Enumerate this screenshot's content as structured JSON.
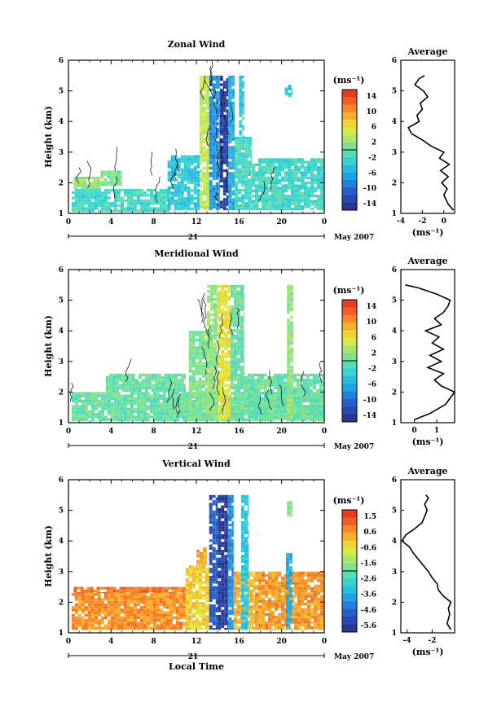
{
  "figure": {
    "xlabel": "Local Time",
    "day_label": "21",
    "month_label": "May 2007",
    "unit_label": "(ms⁻¹)"
  },
  "chart_data": [
    {
      "type": "heatmap",
      "title": "Zonal Wind",
      "ylabel": "Height (km)",
      "xlim": [
        0,
        24
      ],
      "ylim": [
        1,
        6
      ],
      "xticks": [
        "0",
        "4",
        "8",
        "12",
        "16",
        "20",
        "0"
      ],
      "yticks": [
        "1",
        "2",
        "3",
        "4",
        "5",
        "6"
      ],
      "colorbar": {
        "ticks": [
          "14",
          "10",
          "6",
          "2",
          "-2",
          "-6",
          "-10",
          "-14"
        ],
        "range": [
          -16,
          16
        ]
      },
      "regions": [
        {
          "x": [
            0.3,
            9.5
          ],
          "y": [
            1.05,
            1.8
          ],
          "v": -2
        },
        {
          "x": [
            0.5,
            3.0
          ],
          "y": [
            1.8,
            2.2
          ],
          "v": 2
        },
        {
          "x": [
            3.0,
            5.0
          ],
          "y": [
            1.9,
            2.4
          ],
          "v": 1
        },
        {
          "x": [
            9.3,
            12.3
          ],
          "y": [
            1.1,
            2.9
          ],
          "v": -4
        },
        {
          "x": [
            12.3,
            13.2
          ],
          "y": [
            1.1,
            5.5
          ],
          "v": 4
        },
        {
          "x": [
            13.2,
            14.2
          ],
          "y": [
            1.1,
            5.5
          ],
          "v": -8
        },
        {
          "x": [
            14.2,
            15.0
          ],
          "y": [
            1.1,
            5.5
          ],
          "v": -14
        },
        {
          "x": [
            15.0,
            15.6
          ],
          "y": [
            1.1,
            5.5
          ],
          "v": -6
        },
        {
          "x": [
            15.6,
            17.2
          ],
          "y": [
            1.1,
            3.5
          ],
          "v": -2
        },
        {
          "x": [
            16.0,
            16.5
          ],
          "y": [
            3.5,
            5.5
          ],
          "v": -4
        },
        {
          "x": [
            17.2,
            24.0
          ],
          "y": [
            1.1,
            2.8
          ],
          "v": -2
        },
        {
          "x": [
            20.3,
            21.0
          ],
          "y": [
            4.8,
            5.2
          ],
          "v": -4
        }
      ],
      "profile": {
        "title": "Average",
        "xlim": [
          -4,
          1
        ],
        "xticks": [
          "-4",
          "-2",
          "0"
        ],
        "xtick_values": [
          -4,
          -2,
          0
        ],
        "xlabel": "(ms⁻¹)",
        "h": [
          1.1,
          1.3,
          1.6,
          1.8,
          2.0,
          2.2,
          2.4,
          2.6,
          2.8,
          3.0,
          3.2,
          3.4,
          3.6,
          3.8,
          4.0,
          4.2,
          4.4,
          4.6,
          4.8,
          5.0,
          5.2,
          5.4,
          5.5
        ],
        "v": [
          0.9,
          0.4,
          0.0,
          0.3,
          -0.2,
          0.4,
          -0.3,
          0.5,
          -0.4,
          0.0,
          -1.2,
          -2.0,
          -3.0,
          -3.3,
          -2.3,
          -2.5,
          -2.0,
          -2.2,
          -1.5,
          -1.9,
          -2.7,
          -2.3,
          -1.8
        ]
      }
    },
    {
      "type": "heatmap",
      "title": "Meridional Wind",
      "ylabel": "Height (km)",
      "xlim": [
        0,
        24
      ],
      "ylim": [
        1,
        6
      ],
      "xticks": [
        "0",
        "4",
        "8",
        "12",
        "16",
        "20",
        "0"
      ],
      "yticks": [
        "1",
        "2",
        "3",
        "4",
        "5",
        "6"
      ],
      "colorbar": {
        "ticks": [
          "14",
          "10",
          "6",
          "2",
          "-2",
          "-6",
          "-10",
          "-14"
        ],
        "range": [
          -16,
          16
        ]
      },
      "regions": [
        {
          "x": [
            0.3,
            24.0
          ],
          "y": [
            1.05,
            2.0
          ],
          "v": 0
        },
        {
          "x": [
            3.5,
            11.0
          ],
          "y": [
            2.0,
            2.6
          ],
          "v": 0
        },
        {
          "x": [
            11.3,
            13.5
          ],
          "y": [
            1.1,
            4.0
          ],
          "v": 1
        },
        {
          "x": [
            13.0,
            14.0
          ],
          "y": [
            1.1,
            5.5
          ],
          "v": 2
        },
        {
          "x": [
            14.0,
            15.2
          ],
          "y": [
            1.1,
            5.5
          ],
          "v": 6
        },
        {
          "x": [
            15.2,
            16.5
          ],
          "y": [
            1.1,
            5.5
          ],
          "v": 0
        },
        {
          "x": [
            16.5,
            24.0
          ],
          "y": [
            1.1,
            2.6
          ],
          "v": 0
        },
        {
          "x": [
            20.5,
            21.1
          ],
          "y": [
            1.1,
            5.5
          ],
          "v": 2
        }
      ],
      "profile": {
        "title": "Average",
        "xlim": [
          -0.6,
          1.8
        ],
        "xticks": [
          "0",
          "1"
        ],
        "xtick_values": [
          0,
          1
        ],
        "xlabel": "(ms⁻¹)",
        "h": [
          1.1,
          1.3,
          1.6,
          1.8,
          2.0,
          2.2,
          2.4,
          2.6,
          2.8,
          3.0,
          3.2,
          3.4,
          3.6,
          3.8,
          4.0,
          4.2,
          4.4,
          4.6,
          4.8,
          5.0,
          5.2,
          5.4,
          5.5
        ],
        "v": [
          0.0,
          0.7,
          1.4,
          1.6,
          1.8,
          1.2,
          0.9,
          1.3,
          0.6,
          1.2,
          0.7,
          1.3,
          0.8,
          1.1,
          0.5,
          1.2,
          0.9,
          1.3,
          1.5,
          1.6,
          1.0,
          0.2,
          -0.4
        ]
      }
    },
    {
      "type": "heatmap",
      "title": "Vertical Wind",
      "ylabel": "Height (km)",
      "xlim": [
        0,
        24
      ],
      "ylim": [
        1,
        6
      ],
      "xticks": [
        "0",
        "4",
        "8",
        "12",
        "16",
        "20",
        "0"
      ],
      "yticks": [
        "1",
        "2",
        "3",
        "4",
        "5",
        "6"
      ],
      "colorbar": {
        "ticks": [
          "1.5",
          "0.6",
          "-0.6",
          "-1.6",
          "-2.6",
          "-3.6",
          "-4.6",
          "-5.6"
        ],
        "range": [
          -6,
          2
        ]
      },
      "regions": [
        {
          "x": [
            0.3,
            11.5
          ],
          "y": [
            1.1,
            2.3
          ],
          "v": 0.6
        },
        {
          "x": [
            0.5,
            11.0
          ],
          "y": [
            2.3,
            2.5
          ],
          "v": 0.9
        },
        {
          "x": [
            11.0,
            13.2
          ],
          "y": [
            1.1,
            3.2
          ],
          "v": -0.2
        },
        {
          "x": [
            12.0,
            13.0
          ],
          "y": [
            3.2,
            3.8
          ],
          "v": 0.3
        },
        {
          "x": [
            13.2,
            14.0
          ],
          "y": [
            1.1,
            5.5
          ],
          "v": -4.8
        },
        {
          "x": [
            14.0,
            15.0
          ],
          "y": [
            1.1,
            5.5
          ],
          "v": -5.6
        },
        {
          "x": [
            15.0,
            15.5
          ],
          "y": [
            1.1,
            5.5
          ],
          "v": -4.0
        },
        {
          "x": [
            15.5,
            17.5
          ],
          "y": [
            1.1,
            3.0
          ],
          "v": 0.2
        },
        {
          "x": [
            16.2,
            16.9
          ],
          "y": [
            1.1,
            5.5
          ],
          "v": -3.0
        },
        {
          "x": [
            17.5,
            24.0
          ],
          "y": [
            1.1,
            3.0
          ],
          "v": 0.5
        },
        {
          "x": [
            20.4,
            21.0
          ],
          "y": [
            1.1,
            3.6
          ],
          "v": -3.5
        },
        {
          "x": [
            20.5,
            21.0
          ],
          "y": [
            4.8,
            5.3
          ],
          "v": -1.5
        }
      ],
      "profile": {
        "title": "Average",
        "xlim": [
          -4.5,
          -0.2
        ],
        "xticks": [
          "-4",
          "-2"
        ],
        "xtick_values": [
          -4,
          -2
        ],
        "xlabel": "(ms⁻¹)",
        "h": [
          1.1,
          1.3,
          1.6,
          1.8,
          2.0,
          2.2,
          2.4,
          2.6,
          2.8,
          3.0,
          3.2,
          3.4,
          3.6,
          3.8,
          4.0,
          4.2,
          4.4,
          4.6,
          4.8,
          5.0,
          5.2,
          5.4,
          5.5
        ],
        "v": [
          -0.5,
          -0.8,
          -0.6,
          -0.7,
          -0.5,
          -1.1,
          -1.5,
          -1.6,
          -2.0,
          -2.3,
          -2.7,
          -3.1,
          -3.5,
          -3.8,
          -4.4,
          -4.1,
          -3.4,
          -2.8,
          -2.6,
          -2.4,
          -2.6,
          -2.3,
          -2.5
        ]
      }
    }
  ]
}
